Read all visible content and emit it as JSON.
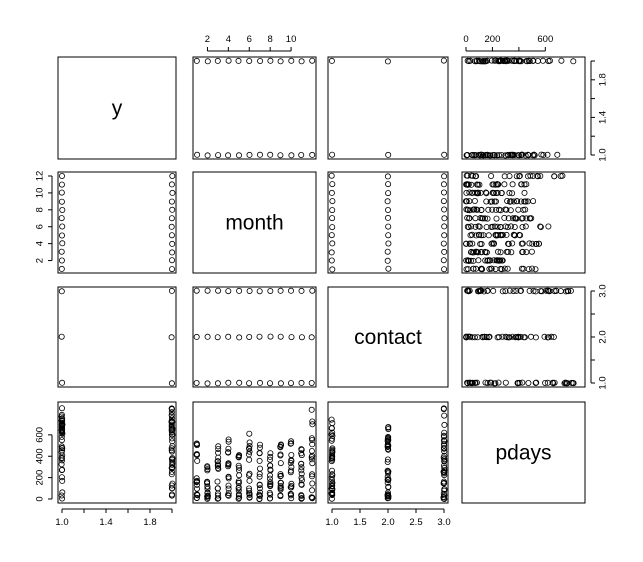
{
  "chart_data": {
    "type": "scatter",
    "variables": [
      "y",
      "month",
      "contact",
      "pdays"
    ],
    "ranges": {
      "y": [
        1,
        2
      ],
      "month": [
        1,
        12
      ],
      "contact": [
        1,
        3
      ],
      "pdays": [
        0,
        870
      ]
    },
    "ticks": {
      "y": {
        "values": [
          1.0,
          1.2,
          1.4,
          1.6,
          1.8,
          2.0
        ],
        "labels": [
          "1.0",
          "",
          "1.4",
          "",
          "1.8",
          ""
        ]
      },
      "month": {
        "values": [
          2,
          4,
          6,
          8,
          10,
          12
        ],
        "labels": [
          "2",
          "4",
          "6",
          "8",
          "10",
          "12"
        ]
      },
      "month_top": {
        "values": [
          2,
          4,
          6,
          8,
          10
        ],
        "labels": [
          "2",
          "4",
          "6",
          "8",
          "10"
        ]
      },
      "contact": {
        "values": [
          1.0,
          1.5,
          2.0,
          2.5,
          3.0
        ],
        "labels": [
          "1.0",
          "1.5",
          "2.0",
          "2.5",
          "3.0"
        ]
      },
      "contact_right": {
        "values": [
          1.0,
          1.5,
          2.0,
          2.5,
          3.0
        ],
        "labels": [
          "1.0",
          "",
          "2.0",
          "",
          "3.0"
        ]
      },
      "pdays": {
        "values": [
          0,
          200,
          400,
          600
        ],
        "labels": [
          "0",
          "200",
          "400",
          "600"
        ]
      },
      "pdays_top": {
        "values": [
          0,
          200,
          400,
          600
        ],
        "labels": [
          "0",
          "200",
          "",
          "600"
        ]
      }
    },
    "axes": {
      "top": [
        null,
        "month_top",
        null,
        "pdays_top"
      ],
      "right": [
        "y",
        null,
        "contact_right",
        null
      ],
      "bottom": [
        "y",
        null,
        "contact",
        null
      ],
      "left": [
        null,
        "month",
        null,
        "pdays"
      ]
    },
    "observations": {
      "y_levels": [
        1,
        2
      ],
      "month_levels": [
        1,
        2,
        3,
        4,
        5,
        6,
        7,
        8,
        9,
        10,
        11,
        12
      ],
      "contact_levels": [
        1,
        2,
        3
      ],
      "pdays_by_month_max": [
        600,
        320,
        500,
        560,
        430,
        640,
        540,
        470,
        530,
        560,
        500,
        850
      ],
      "pdays_by_contact_max": [
        850,
        690,
        850
      ],
      "pdays_by_y_max": [
        850,
        850
      ],
      "pdays_by_contact_min": [
        0,
        0,
        0
      ],
      "pdays_range_by_contact_for_y": [
        [
          0,
          850
        ],
        [
          0,
          700
        ],
        [
          0,
          850
        ]
      ]
    },
    "title": "",
    "xlabel": "",
    "ylabel": ""
  }
}
